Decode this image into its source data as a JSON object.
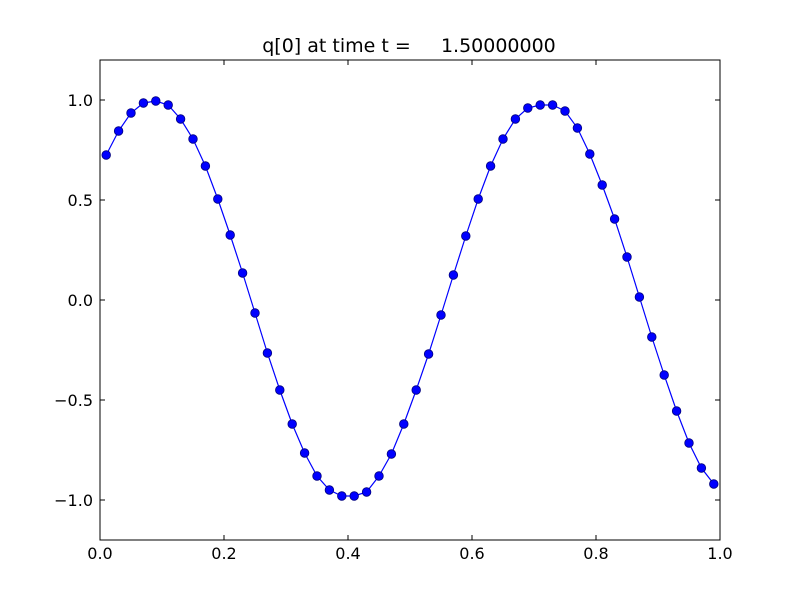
{
  "chart_data": {
    "type": "line",
    "title": "q[0] at time t =     1.50000000",
    "xlabel": "",
    "ylabel": "",
    "xlim": [
      0.0,
      1.0
    ],
    "ylim": [
      -1.2,
      1.2
    ],
    "xticks": [
      0.0,
      0.2,
      0.4,
      0.6,
      0.8,
      1.0
    ],
    "xtick_labels": [
      "0.0",
      "0.2",
      "0.4",
      "0.6",
      "0.8",
      "1.0"
    ],
    "yticks": [
      -1.0,
      -0.5,
      0.0,
      0.5,
      1.0
    ],
    "ytick_labels": [
      "−1.0",
      "−0.5",
      "0.0",
      "0.5",
      "1.0"
    ],
    "grid": false,
    "legend": "none",
    "colors": {
      "line": "#0000ff",
      "marker": "#0000ff",
      "marker_edge": "#000080",
      "axes": "#000000",
      "background": "#ffffff"
    },
    "series": [
      {
        "marker": "circle",
        "x": [
          0.01,
          0.03,
          0.05,
          0.07,
          0.09,
          0.11,
          0.13,
          0.15,
          0.17,
          0.19,
          0.21,
          0.23,
          0.25,
          0.27,
          0.29,
          0.31,
          0.33,
          0.35,
          0.37,
          0.39,
          0.41,
          0.43,
          0.45,
          0.47,
          0.49,
          0.51,
          0.53,
          0.55,
          0.57,
          0.59,
          0.61,
          0.63,
          0.65,
          0.67,
          0.69,
          0.71,
          0.73,
          0.75,
          0.77,
          0.79,
          0.81,
          0.83,
          0.85,
          0.87,
          0.89,
          0.91,
          0.93,
          0.95,
          0.97,
          0.99
        ],
        "y": [
          0.725,
          0.845,
          0.935,
          0.985,
          0.995,
          0.975,
          0.905,
          0.805,
          0.67,
          0.505,
          0.325,
          0.135,
          -0.065,
          -0.265,
          -0.45,
          -0.62,
          -0.765,
          -0.88,
          -0.95,
          -0.98,
          -0.98,
          -0.96,
          -0.88,
          -0.77,
          -0.62,
          -0.45,
          -0.27,
          -0.075,
          0.125,
          0.32,
          0.505,
          0.67,
          0.805,
          0.905,
          0.96,
          0.975,
          0.975,
          0.945,
          0.86,
          0.73,
          0.575,
          0.405,
          0.215,
          0.015,
          -0.185,
          -0.375,
          -0.555,
          -0.715,
          -0.84,
          -0.92
        ]
      }
    ]
  }
}
